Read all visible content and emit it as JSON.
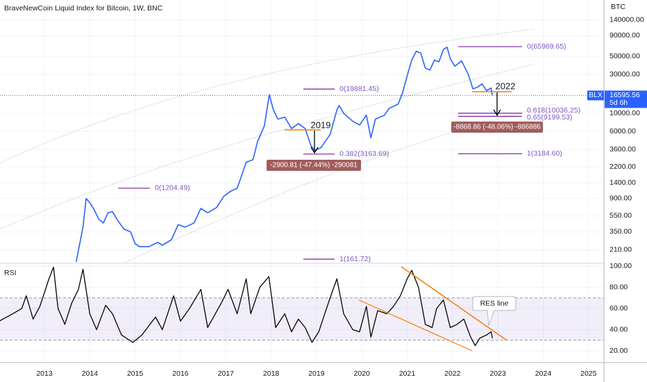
{
  "chart_data": [
    {
      "type": "line",
      "title": "BraveNewCoin Liquid Index for Bitcoin, 1W, BNC",
      "y_label": "BTC",
      "log_scale": true,
      "color": "#2962ff",
      "xlim": [
        2012.02,
        2025.34
      ],
      "ylim": [
        147,
        247000
      ],
      "yticks": [
        {
          "value": 140000,
          "label": "140000.00"
        },
        {
          "value": 90000,
          "label": "90000.00"
        },
        {
          "value": 50000,
          "label": "50000.00"
        },
        {
          "value": 30000,
          "label": "30000.00"
        },
        {
          "value": 10000,
          "label": "10000.00"
        },
        {
          "value": 6000,
          "label": "6000.00"
        },
        {
          "value": 3600,
          "label": "3600.00"
        },
        {
          "value": 2200,
          "label": "2200.00"
        },
        {
          "value": 1400,
          "label": "1400.00"
        },
        {
          "value": 900,
          "label": "900.00"
        },
        {
          "value": 550,
          "label": "550.00"
        },
        {
          "value": 350,
          "label": "350.00"
        },
        {
          "value": 210,
          "label": "210.00"
        }
      ],
      "x": [
        2013.7,
        2013.85,
        2013.92,
        2014.0,
        2014.1,
        2014.2,
        2014.3,
        2014.4,
        2014.5,
        2014.6,
        2014.75,
        2014.9,
        2015.0,
        2015.1,
        2015.3,
        2015.5,
        2015.6,
        2015.8,
        2015.95,
        2016.1,
        2016.3,
        2016.45,
        2016.6,
        2016.8,
        2016.95,
        2017.1,
        2017.25,
        2017.45,
        2017.6,
        2017.7,
        2017.85,
        2017.96,
        2018.05,
        2018.15,
        2018.3,
        2018.45,
        2018.6,
        2018.75,
        2018.88,
        2018.96,
        2019.1,
        2019.3,
        2019.45,
        2019.5,
        2019.6,
        2019.8,
        2019.95,
        2020.1,
        2020.2,
        2020.3,
        2020.5,
        2020.6,
        2020.8,
        2020.9,
        2021.0,
        2021.1,
        2021.2,
        2021.3,
        2021.4,
        2021.5,
        2021.6,
        2021.7,
        2021.8,
        2021.88,
        2021.95,
        2022.05,
        2022.2,
        2022.35,
        2022.45,
        2022.55,
        2022.65,
        2022.75,
        2022.85,
        2022.88
      ],
      "values": [
        150,
        400,
        900,
        800,
        650,
        500,
        450,
        600,
        620,
        500,
        380,
        350,
        250,
        230,
        230,
        260,
        240,
        280,
        430,
        400,
        450,
        680,
        600,
        700,
        950,
        1100,
        1200,
        2500,
        2700,
        4500,
        7000,
        17000,
        11000,
        8500,
        9000,
        6500,
        7500,
        6500,
        4000,
        3500,
        3800,
        5500,
        11000,
        12500,
        10000,
        8000,
        7200,
        9500,
        5000,
        8500,
        9500,
        11500,
        13000,
        18000,
        29000,
        45000,
        58000,
        55000,
        36000,
        34000,
        45000,
        43000,
        61000,
        65000,
        47000,
        38000,
        44000,
        30000,
        20000,
        21000,
        23000,
        19000,
        20500,
        16595.56
      ],
      "last_name": "BLX",
      "last_value": 16595.56,
      "countdown": "5d 6h",
      "fib_levels": [
        {
          "label": "0(65969.65)",
          "value": 65969.65
        },
        {
          "label": "0(19881.45)",
          "value": 19881.45
        },
        {
          "label": "0(1204.49)",
          "value": 1204.49
        },
        {
          "label": "0.618(10036.25)",
          "value": 10036.25
        },
        {
          "label": "0.65(9199.53)",
          "value": 9199.53
        },
        {
          "label": "0.382(3163.69)",
          "value": 3163.69
        },
        {
          "label": "1(3184.60)",
          "value": 3184.6
        },
        {
          "label": "1(161.72)",
          "value": 161.72
        }
      ],
      "annotations": [
        "2019",
        "2022",
        "-2900.81 (-47.44%) -290081",
        "-8868.86 (-48.06%) -886886"
      ]
    },
    {
      "type": "line",
      "title": "RSI",
      "color": "#000000",
      "band": [
        30,
        70
      ],
      "band_color": "#7e57c2",
      "xlim": [
        2012.02,
        2025.34
      ],
      "ylim": [
        9,
        102
      ],
      "xticks": [
        2013,
        2014,
        2015,
        2016,
        2017,
        2018,
        2019,
        2020,
        2021,
        2022,
        2023,
        2024,
        2025
      ],
      "yticks": [
        {
          "value": 100,
          "label": "100.00"
        },
        {
          "value": 80,
          "label": "80.00"
        },
        {
          "value": 60,
          "label": "60.00"
        },
        {
          "value": 40,
          "label": "40.00"
        },
        {
          "value": 20,
          "label": "20.00"
        }
      ],
      "x": [
        2012.0,
        2012.3,
        2012.5,
        2012.6,
        2012.75,
        2012.9,
        2013.1,
        2013.2,
        2013.3,
        2013.45,
        2013.6,
        2013.75,
        2013.85,
        2014.0,
        2014.15,
        2014.35,
        2014.5,
        2014.7,
        2014.95,
        2015.15,
        2015.45,
        2015.6,
        2015.85,
        2016.0,
        2016.2,
        2016.45,
        2016.6,
        2016.9,
        2017.05,
        2017.25,
        2017.45,
        2017.55,
        2017.75,
        2017.95,
        2018.1,
        2018.3,
        2018.45,
        2018.6,
        2018.75,
        2018.9,
        2019.05,
        2019.3,
        2019.45,
        2019.6,
        2019.8,
        2019.95,
        2020.1,
        2020.2,
        2020.35,
        2020.55,
        2020.7,
        2020.85,
        2021.0,
        2021.1,
        2021.25,
        2021.4,
        2021.55,
        2021.65,
        2021.8,
        2021.95,
        2022.1,
        2022.25,
        2022.4,
        2022.5,
        2022.6,
        2022.75,
        2022.85,
        2022.88
      ],
      "values": [
        48,
        55,
        60,
        72,
        50,
        62,
        88,
        99,
        60,
        45,
        65,
        78,
        97,
        55,
        40,
        63,
        55,
        35,
        28,
        35,
        52,
        40,
        72,
        48,
        60,
        78,
        42,
        65,
        78,
        55,
        88,
        55,
        80,
        90,
        42,
        55,
        38,
        50,
        42,
        28,
        38,
        70,
        88,
        55,
        40,
        38,
        62,
        33,
        58,
        55,
        62,
        72,
        88,
        96,
        80,
        45,
        42,
        60,
        68,
        42,
        45,
        50,
        33,
        25,
        32,
        35,
        38,
        32
      ],
      "annotations": [
        "RES line"
      ]
    }
  ]
}
